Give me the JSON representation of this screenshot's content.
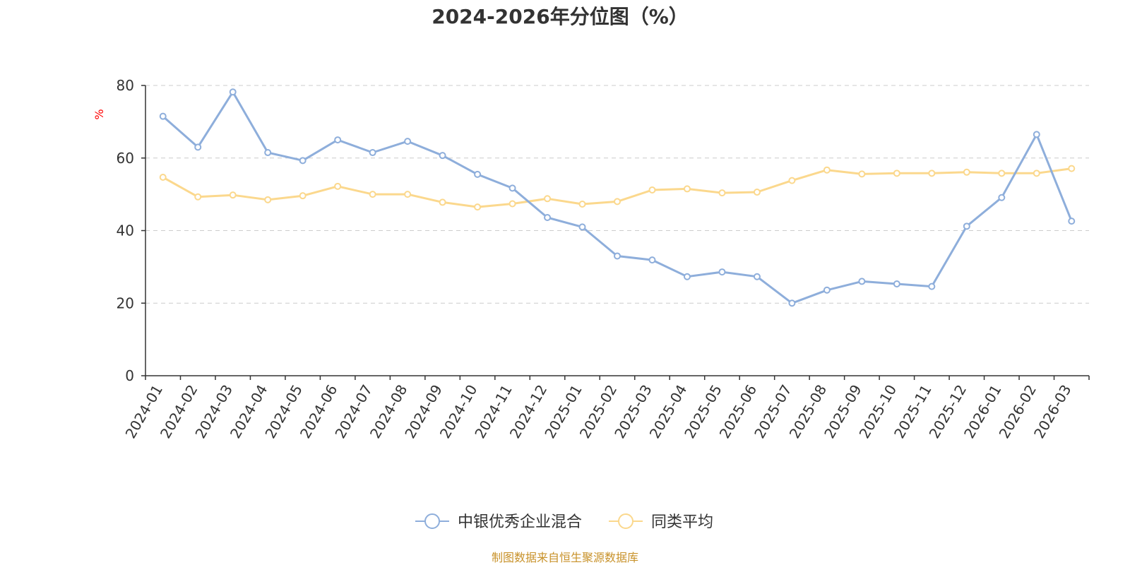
{
  "chart_data": {
    "type": "line",
    "title": "2024-2026年分位图（%）",
    "ylabel": "%",
    "ylim": [
      0,
      80
    ],
    "yticks": [
      0,
      20,
      40,
      60,
      80
    ],
    "grid": true,
    "legend_position": "bottom-center",
    "categories": [
      "2024-01",
      "2024-02",
      "2024-03",
      "2024-04",
      "2024-05",
      "2024-06",
      "2024-07",
      "2024-08",
      "2024-09",
      "2024-10",
      "2024-11",
      "2024-12",
      "2025-01",
      "2025-02",
      "2025-03",
      "2025-04",
      "2025-05",
      "2025-06",
      "2025-07",
      "2025-08",
      "2025-09",
      "2025-10",
      "2025-11",
      "2025-12",
      "2026-01",
      "2026-02",
      "2026-03"
    ],
    "series": [
      {
        "name": "中银优秀企业混合",
        "color": "#8eaedb",
        "values": [
          71.5,
          63.0,
          78.2,
          61.5,
          59.3,
          65.0,
          61.5,
          64.6,
          60.7,
          55.5,
          51.7,
          43.6,
          41.0,
          33.0,
          31.9,
          27.3,
          28.6,
          27.3,
          20.0,
          23.6,
          26.0,
          25.3,
          24.6,
          41.2,
          49.1,
          66.5,
          42.6
        ]
      },
      {
        "name": "同类平均",
        "color": "#fbd88d",
        "values": [
          54.7,
          49.3,
          49.8,
          48.5,
          49.6,
          52.2,
          50.0,
          50.0,
          47.8,
          46.5,
          47.4,
          48.8,
          47.3,
          48.0,
          51.2,
          51.5,
          50.4,
          50.6,
          53.8,
          56.7,
          55.6,
          55.8,
          55.8,
          56.1,
          55.8,
          55.8,
          57.1
        ]
      }
    ]
  },
  "colors": {
    "text": "#333333",
    "axis": "#333333",
    "grid": "#cccccc",
    "ylabel": "#ff0000",
    "source": "#c8922a"
  },
  "source_text": "制图数据来自恒生聚源数据库"
}
